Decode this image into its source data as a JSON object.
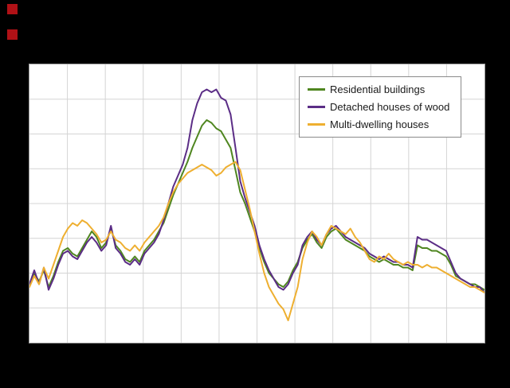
{
  "page": {
    "background_color": "#000000",
    "logo_color": "#b01116"
  },
  "legend": {
    "items": [
      {
        "label": "Residential buildings",
        "color": "#4f8620"
      },
      {
        "label": "Detached houses of wood",
        "color": "#5b2d86"
      },
      {
        "label": "Multi-dwelling houses",
        "color": "#eeaf30"
      }
    ]
  },
  "chart_data": {
    "type": "line",
    "title": "",
    "xlabel": "",
    "ylabel": "",
    "x_tick_labels": [],
    "y_tick_labels": [],
    "x_gridline_count": 13,
    "y_gridline_count": 9,
    "grid": true,
    "gridline_color": "#d4d4d4",
    "plot_background": "#ffffff",
    "legend_position": "top-right-inside",
    "value_range": [
      0,
      100
    ],
    "note": "Axis tick labels are not visible in the screenshot (black-on-black); values are estimated in normalized units 0-100 of plot height.",
    "series": [
      {
        "name": "Residential buildings",
        "color": "#4f8620",
        "values": [
          21,
          25,
          22,
          26,
          20,
          24,
          29,
          33,
          34,
          32,
          31,
          34,
          37,
          40,
          38,
          34,
          36,
          41,
          35,
          33,
          30,
          29,
          31,
          29,
          33,
          35,
          37,
          40,
          43,
          48,
          53,
          57,
          61,
          65,
          70,
          74,
          78,
          80,
          79,
          77,
          76,
          73,
          70,
          62,
          54,
          50,
          45,
          40,
          34,
          29,
          25,
          23,
          21,
          20,
          22,
          26,
          29,
          34,
          37,
          39,
          36,
          34,
          38,
          40,
          41,
          39,
          37,
          36,
          35,
          34,
          33,
          31,
          30,
          29,
          30,
          29,
          28,
          28,
          27,
          27,
          26,
          35,
          34,
          34,
          33,
          33,
          32,
          31,
          28,
          24,
          23,
          22,
          21,
          21,
          20,
          19
        ]
      },
      {
        "name": "Detached houses of wood",
        "color": "#5b2d86",
        "values": [
          21,
          26,
          21,
          27,
          19,
          23,
          28,
          32,
          33,
          31,
          30,
          33,
          36,
          38,
          36,
          33,
          35,
          42,
          34,
          32,
          29,
          28,
          30,
          28,
          32,
          34,
          36,
          39,
          44,
          50,
          56,
          60,
          64,
          70,
          80,
          86,
          90,
          91,
          90,
          91,
          88,
          87,
          82,
          70,
          58,
          52,
          47,
          42,
          35,
          30,
          26,
          23,
          20,
          19,
          21,
          25,
          28,
          35,
          38,
          40,
          37,
          35,
          39,
          41,
          42,
          40,
          38,
          37,
          36,
          35,
          34,
          32,
          31,
          30,
          31,
          30,
          29,
          29,
          28,
          28,
          27,
          38,
          37,
          37,
          36,
          35,
          34,
          33,
          29,
          25,
          23,
          22,
          21,
          20,
          20,
          18
        ]
      },
      {
        "name": "Multi-dwelling houses",
        "color": "#eeaf30",
        "values": [
          20,
          24,
          21,
          27,
          23,
          28,
          33,
          38,
          41,
          43,
          42,
          44,
          43,
          41,
          39,
          36,
          37,
          40,
          37,
          36,
          34,
          33,
          35,
          33,
          36,
          38,
          40,
          42,
          45,
          50,
          54,
          57,
          59,
          61,
          62,
          63,
          64,
          63,
          62,
          60,
          61,
          63,
          64,
          65,
          62,
          55,
          48,
          40,
          32,
          25,
          20,
          17,
          14,
          12,
          8,
          14,
          20,
          30,
          36,
          40,
          38,
          35,
          39,
          42,
          41,
          40,
          39,
          41,
          38,
          36,
          33,
          30,
          29,
          31,
          30,
          32,
          30,
          29,
          28,
          29,
          28,
          28,
          27,
          28,
          27,
          27,
          26,
          25,
          24,
          23,
          22,
          21,
          20,
          20,
          19,
          18
        ]
      }
    ]
  }
}
